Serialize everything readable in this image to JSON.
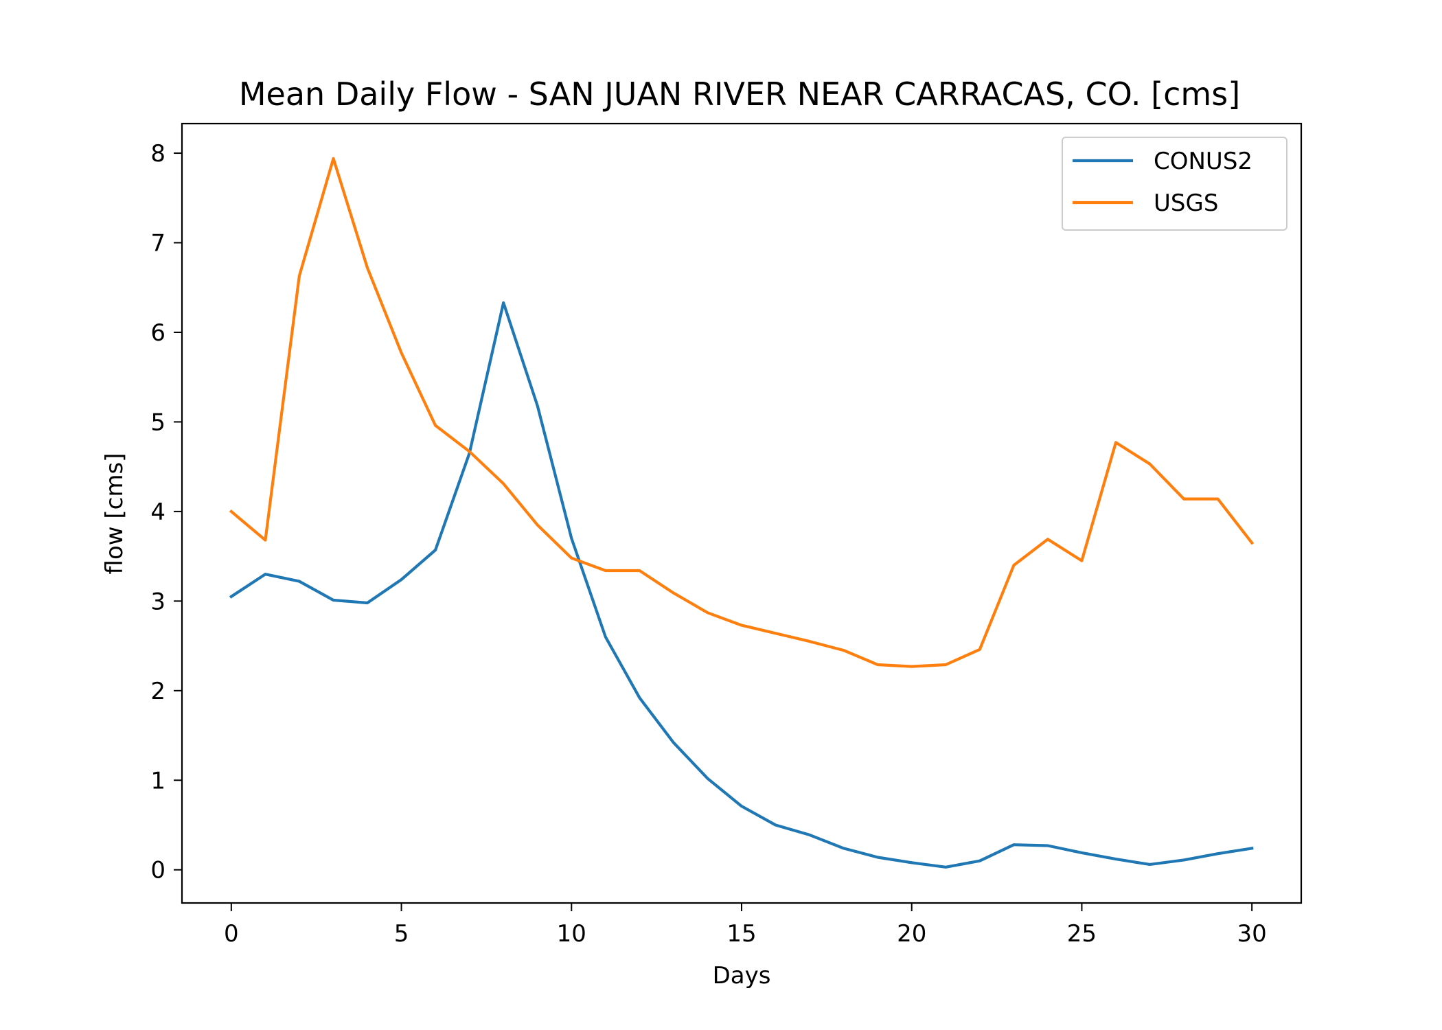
{
  "chart_data": {
    "type": "line",
    "title": "Mean Daily Flow - SAN JUAN RIVER NEAR CARRACAS, CO. [cms]",
    "xlabel": "Days",
    "ylabel": "flow [cms]",
    "xlim": [
      -1.45,
      31.45
    ],
    "ylim": [
      -0.37,
      8.33
    ],
    "xticks": [
      0,
      5,
      10,
      15,
      20,
      25,
      30
    ],
    "yticks": [
      0,
      1,
      2,
      3,
      4,
      5,
      6,
      7,
      8
    ],
    "grid": false,
    "legend": {
      "position": "top-right",
      "entries": [
        "CONUS2",
        "USGS"
      ]
    },
    "x": [
      0,
      1,
      2,
      3,
      4,
      5,
      6,
      7,
      8,
      9,
      10,
      11,
      12,
      13,
      14,
      15,
      16,
      17,
      18,
      19,
      20,
      21,
      22,
      23,
      24,
      25,
      26,
      27,
      28,
      29,
      30
    ],
    "series": [
      {
        "name": "CONUS2",
        "color": "#1f77b4",
        "values": [
          3.05,
          3.3,
          3.22,
          3.01,
          2.98,
          3.24,
          3.57,
          4.65,
          6.33,
          5.18,
          3.7,
          2.6,
          1.92,
          1.42,
          1.02,
          0.71,
          0.5,
          0.39,
          0.24,
          0.14,
          0.08,
          0.03,
          0.1,
          0.28,
          0.27,
          0.19,
          0.12,
          0.06,
          0.11,
          0.18,
          0.24
        ]
      },
      {
        "name": "USGS",
        "color": "#ff7f0e",
        "values": [
          4.0,
          3.68,
          6.63,
          7.94,
          6.72,
          5.77,
          4.96,
          4.67,
          4.31,
          3.85,
          3.48,
          3.34,
          3.34,
          3.09,
          2.87,
          2.73,
          2.64,
          2.55,
          2.45,
          2.29,
          2.27,
          2.29,
          2.46,
          3.4,
          3.69,
          3.45,
          4.77,
          4.53,
          4.14,
          4.14,
          3.65
        ]
      }
    ]
  }
}
